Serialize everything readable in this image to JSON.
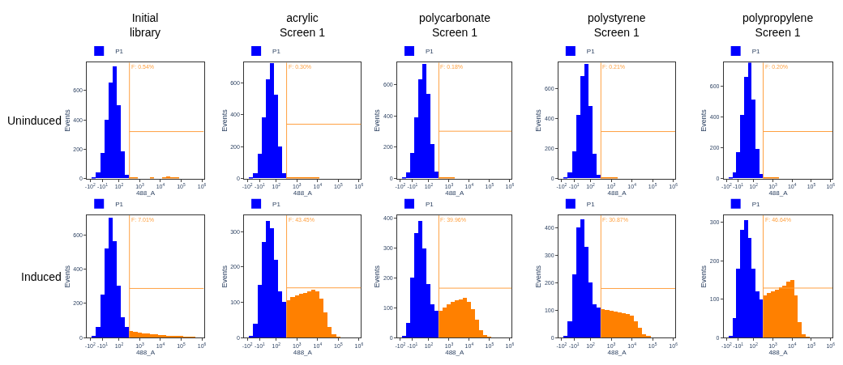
{
  "chart_data": [
    {
      "type": "bar",
      "title": "Initial\nlibrary",
      "xlabel": "488_A",
      "ylabel": "Events",
      "annotations": [
        "Uninduced",
        "F: 0.54%"
      ],
      "legend": "top left",
      "categories": [
        "-10$^{2}$",
        null,
        null,
        "-10$^{1}$",
        null,
        null,
        null,
        "10$^{2}$",
        null,
        null,
        null,
        null,
        "10$^{3}$",
        null,
        null,
        null,
        null,
        "10$^{4}$",
        null,
        null,
        null,
        null,
        "10$^{5}$",
        null,
        null,
        null,
        null,
        "10$^{6}$"
      ],
      "series": [
        {
          "name": "P1",
          "values": [
            0,
            5,
            40,
            170,
            400,
            650,
            760,
            500,
            180,
            25,
            6,
            2,
            0,
            0,
            0,
            2,
            0,
            0,
            4,
            9,
            5,
            2,
            0,
            0,
            0,
            0,
            0,
            0
          ]
        }
      ],
      "colors": [
        "#0000ff",
        "#0000ff",
        "#0000ff",
        "#0000ff",
        "#0000ff",
        "#0000ff",
        "#0000ff",
        "#0000ff",
        "#0000ff",
        "#0000ff",
        "#ff8000",
        "#ff8000",
        "#ff8000",
        "#ff8000",
        "#ff8000",
        "#ff8000",
        "#ff8000",
        "#ff8000",
        "#ff8000",
        "#ff8000",
        "#ff8000",
        "#ff8000",
        "#ff8000",
        "#ff8000",
        "#ff8000",
        "#ff8000",
        "#ff8000",
        "#ff8000"
      ],
      "ylim": [
        0,
        790
      ],
      "yticks": [
        0,
        200,
        400,
        600
      ],
      "ref_lines": [
        {
          "axis": "y",
          "value": 320,
          "color": "#ffa040"
        }
      ]
    },
    {
      "type": "bar",
      "title": "acrylic\nScreen 1",
      "xlabel": "488_A",
      "ylabel": "Events",
      "annotations": [
        "F: 0.30%"
      ],
      "legend": "top left",
      "categories": [
        "-10$^{2}$",
        null,
        null,
        "-10$^{1}$",
        null,
        null,
        null,
        "10$^{2}$",
        null,
        null,
        null,
        null,
        "10$^{3}$",
        null,
        null,
        null,
        null,
        "10$^{4}$",
        null,
        null,
        null,
        null,
        "10$^{5}$",
        null,
        null,
        null,
        null,
        "10$^{6}$"
      ],
      "series": [
        {
          "name": "P1",
          "values": [
            0,
            5,
            30,
            150,
            380,
            620,
            720,
            520,
            200,
            30,
            2,
            1,
            2,
            1,
            2,
            1,
            2,
            1,
            0,
            0,
            0,
            0,
            0,
            0,
            0,
            0,
            0,
            0
          ]
        }
      ],
      "colors": [
        "#0000ff",
        "#0000ff",
        "#0000ff",
        "#0000ff",
        "#0000ff",
        "#0000ff",
        "#0000ff",
        "#0000ff",
        "#0000ff",
        "#0000ff",
        "#ff8000",
        "#ff8000",
        "#ff8000",
        "#ff8000",
        "#ff8000",
        "#ff8000",
        "#ff8000",
        "#ff8000",
        "#ff8000",
        "#ff8000",
        "#ff8000",
        "#ff8000",
        "#ff8000",
        "#ff8000",
        "#ff8000",
        "#ff8000",
        "#ff8000",
        "#ff8000"
      ],
      "ylim": [
        0,
        725
      ],
      "yticks": [
        0,
        200,
        400,
        600
      ],
      "ref_lines": [
        {
          "axis": "y",
          "value": 340,
          "color": "#ffa040"
        }
      ]
    },
    {
      "type": "bar",
      "title": "polycarbonate\nScreen 1",
      "xlabel": "488_A",
      "ylabel": "Events",
      "annotations": [
        "F: 0.18%"
      ],
      "legend": "top left",
      "categories": [
        "-10$^{2}$",
        null,
        null,
        "-10$^{1}$",
        null,
        null,
        null,
        "10$^{2}$",
        null,
        null,
        null,
        null,
        "10$^{3}$",
        null,
        null,
        null,
        null,
        "10$^{4}$",
        null,
        null,
        null,
        null,
        "10$^{5}$",
        null,
        null,
        null,
        null,
        "10$^{6}$"
      ],
      "series": [
        {
          "name": "P1",
          "values": [
            0,
            5,
            35,
            160,
            390,
            630,
            730,
            540,
            220,
            40,
            2,
            1,
            2,
            1,
            0,
            0,
            0,
            0,
            0,
            0,
            0,
            0,
            0,
            0,
            0,
            0,
            0,
            0
          ]
        }
      ],
      "colors": [
        "#0000ff",
        "#0000ff",
        "#0000ff",
        "#0000ff",
        "#0000ff",
        "#0000ff",
        "#0000ff",
        "#0000ff",
        "#0000ff",
        "#0000ff",
        "#ff8000",
        "#ff8000",
        "#ff8000",
        "#ff8000",
        "#ff8000",
        "#ff8000",
        "#ff8000",
        "#ff8000",
        "#ff8000",
        "#ff8000",
        "#ff8000",
        "#ff8000",
        "#ff8000",
        "#ff8000",
        "#ff8000",
        "#ff8000",
        "#ff8000",
        "#ff8000"
      ],
      "ylim": [
        0,
        740
      ],
      "yticks": [
        0,
        200,
        400,
        600
      ],
      "ref_lines": [
        {
          "axis": "y",
          "value": 302,
          "color": "#ffa040"
        }
      ]
    },
    {
      "type": "bar",
      "title": "polystyrene\nScreen 1",
      "xlabel": "488_A",
      "ylabel": "Events",
      "annotations": [
        "F: 0.21%"
      ],
      "legend": "top left",
      "categories": [
        "-10$^{2}$",
        null,
        null,
        "-10$^{1}$",
        null,
        null,
        null,
        "10$^{2}$",
        null,
        null,
        null,
        null,
        "10$^{3}$",
        null,
        null,
        null,
        null,
        "10$^{4}$",
        null,
        null,
        null,
        null,
        "10$^{5}$",
        null,
        null,
        null,
        null,
        "10$^{6}$"
      ],
      "series": [
        {
          "name": "P1",
          "values": [
            0,
            5,
            40,
            180,
            420,
            680,
            760,
            480,
            160,
            20,
            2,
            1,
            2,
            1,
            0,
            0,
            0,
            0,
            0,
            0,
            0,
            0,
            0,
            0,
            0,
            0,
            0,
            0
          ]
        }
      ],
      "colors": [
        "#0000ff",
        "#0000ff",
        "#0000ff",
        "#0000ff",
        "#0000ff",
        "#0000ff",
        "#0000ff",
        "#0000ff",
        "#0000ff",
        "#0000ff",
        "#ff8000",
        "#ff8000",
        "#ff8000",
        "#ff8000",
        "#ff8000",
        "#ff8000",
        "#ff8000",
        "#ff8000",
        "#ff8000",
        "#ff8000",
        "#ff8000",
        "#ff8000",
        "#ff8000",
        "#ff8000",
        "#ff8000",
        "#ff8000",
        "#ff8000",
        "#ff8000"
      ],
      "ylim": [
        0,
        770
      ],
      "yticks": [
        0,
        200,
        400,
        600
      ],
      "ref_lines": [
        {
          "axis": "y",
          "value": 312,
          "color": "#ffa040"
        }
      ]
    },
    {
      "type": "bar",
      "title": "polypropylene\nScreen 1",
      "xlabel": "488_A",
      "ylabel": "Events",
      "annotations": [
        "F: 0.20%"
      ],
      "legend": "top left",
      "categories": [
        "-10$^{2}$",
        null,
        null,
        "-10$^{1}$",
        null,
        null,
        null,
        "10$^{2}$",
        null,
        null,
        null,
        null,
        "10$^{3}$",
        null,
        null,
        null,
        null,
        "10$^{4}$",
        null,
        null,
        null,
        null,
        "10$^{5}$",
        null,
        null,
        null,
        null,
        "10$^{6}$"
      ],
      "series": [
        {
          "name": "P1",
          "values": [
            0,
            5,
            35,
            170,
            410,
            660,
            750,
            510,
            190,
            25,
            2,
            1,
            2,
            1,
            0,
            0,
            0,
            0,
            0,
            0,
            0,
            0,
            0,
            0,
            0,
            0,
            0,
            0
          ]
        }
      ],
      "colors": [
        "#0000ff",
        "#0000ff",
        "#0000ff",
        "#0000ff",
        "#0000ff",
        "#0000ff",
        "#0000ff",
        "#0000ff",
        "#0000ff",
        "#0000ff",
        "#ff8000",
        "#ff8000",
        "#ff8000",
        "#ff8000",
        "#ff8000",
        "#ff8000",
        "#ff8000",
        "#ff8000",
        "#ff8000",
        "#ff8000",
        "#ff8000",
        "#ff8000",
        "#ff8000",
        "#ff8000",
        "#ff8000",
        "#ff8000",
        "#ff8000",
        "#ff8000"
      ],
      "ylim": [
        0,
        752
      ],
      "yticks": [
        0,
        200,
        400,
        600
      ],
      "ref_lines": [
        {
          "axis": "y",
          "value": 305,
          "color": "#ffa040"
        }
      ]
    },
    {
      "type": "bar",
      "xlabel": "488_A",
      "ylabel": "Events",
      "annotations": [
        "Induced",
        "F: 7.01%"
      ],
      "legend": "top left",
      "categories": [
        "-10$^{2}$",
        null,
        null,
        "-10$^{1}$",
        null,
        null,
        null,
        "10$^{2}$",
        null,
        null,
        null,
        null,
        "10$^{3}$",
        null,
        null,
        null,
        null,
        "10$^{4}$",
        null,
        null,
        null,
        null,
        "10$^{5}$",
        null,
        null,
        null,
        null,
        "10$^{6}$"
      ],
      "series": [
        {
          "name": "P1",
          "values": [
            0,
            5,
            60,
            250,
            520,
            700,
            560,
            300,
            120,
            60,
            40,
            35,
            30,
            25,
            22,
            20,
            18,
            15,
            12,
            10,
            8,
            6,
            5,
            4,
            2,
            1,
            0,
            0
          ]
        }
      ],
      "colors": [
        "#0000ff",
        "#0000ff",
        "#0000ff",
        "#0000ff",
        "#0000ff",
        "#0000ff",
        "#0000ff",
        "#0000ff",
        "#0000ff",
        "#0000ff",
        "#ff8000",
        "#ff8000",
        "#ff8000",
        "#ff8000",
        "#ff8000",
        "#ff8000",
        "#ff8000",
        "#ff8000",
        "#ff8000",
        "#ff8000",
        "#ff8000",
        "#ff8000",
        "#ff8000",
        "#ff8000",
        "#ff8000",
        "#ff8000",
        "#ff8000",
        "#ff8000"
      ],
      "ylim": [
        0,
        713
      ],
      "yticks": [
        0,
        200,
        400,
        600
      ],
      "ref_lines": [
        {
          "axis": "y",
          "value": 287,
          "color": "#ffa040"
        }
      ]
    },
    {
      "type": "bar",
      "xlabel": "488_A",
      "ylabel": "Events",
      "annotations": [
        "F: 43.45%"
      ],
      "legend": "top left",
      "categories": [
        "-10$^{2}$",
        null,
        null,
        "-10$^{1}$",
        null,
        null,
        null,
        "10$^{2}$",
        null,
        null,
        null,
        null,
        "10$^{3}$",
        null,
        null,
        null,
        null,
        "10$^{4}$",
        null,
        null,
        null,
        null,
        "10$^{5}$",
        null,
        null,
        null,
        null,
        "10$^{6}$"
      ],
      "series": [
        {
          "name": "P1",
          "values": [
            0,
            5,
            40,
            150,
            270,
            330,
            310,
            220,
            130,
            100,
            105,
            115,
            120,
            123,
            127,
            130,
            135,
            130,
            110,
            70,
            30,
            10,
            2,
            0,
            0,
            0,
            0,
            0
          ]
        }
      ],
      "colors": [
        "#0000ff",
        "#0000ff",
        "#0000ff",
        "#0000ff",
        "#0000ff",
        "#0000ff",
        "#0000ff",
        "#0000ff",
        "#0000ff",
        "#0000ff",
        "#ff8000",
        "#ff8000",
        "#ff8000",
        "#ff8000",
        "#ff8000",
        "#ff8000",
        "#ff8000",
        "#ff8000",
        "#ff8000",
        "#ff8000",
        "#ff8000",
        "#ff8000",
        "#ff8000",
        "#ff8000",
        "#ff8000",
        "#ff8000",
        "#ff8000",
        "#ff8000"
      ],
      "ylim": [
        0,
        346
      ],
      "yticks": [
        0,
        100,
        200,
        300
      ],
      "ref_lines": [
        {
          "axis": "y",
          "value": 141,
          "color": "#ffa040"
        }
      ]
    },
    {
      "type": "bar",
      "xlabel": "488_A",
      "ylabel": "Events",
      "annotations": [
        "F: 39.96%"
      ],
      "legend": "top left",
      "categories": [
        "-10$^{2}$",
        null,
        null,
        "-10$^{1}$",
        null,
        null,
        null,
        "10$^{2}$",
        null,
        null,
        null,
        null,
        "10$^{3}$",
        null,
        null,
        null,
        null,
        "10$^{4}$",
        null,
        null,
        null,
        null,
        "10$^{5}$",
        null,
        null,
        null,
        null,
        "10$^{6}$"
      ],
      "series": [
        {
          "name": "P1",
          "values": [
            0,
            5,
            50,
            200,
            350,
            390,
            300,
            180,
            110,
            90,
            90,
            100,
            110,
            120,
            125,
            128,
            132,
            120,
            95,
            60,
            25,
            8,
            2,
            0,
            0,
            0,
            0,
            0
          ]
        }
      ],
      "colors": [
        "#0000ff",
        "#0000ff",
        "#0000ff",
        "#0000ff",
        "#0000ff",
        "#0000ff",
        "#0000ff",
        "#0000ff",
        "#0000ff",
        "#0000ff",
        "#ff8000",
        "#ff8000",
        "#ff8000",
        "#ff8000",
        "#ff8000",
        "#ff8000",
        "#ff8000",
        "#ff8000",
        "#ff8000",
        "#ff8000",
        "#ff8000",
        "#ff8000",
        "#ff8000",
        "#ff8000",
        "#ff8000",
        "#ff8000",
        "#ff8000",
        "#ff8000"
      ],
      "ylim": [
        0,
        410
      ],
      "yticks": [
        0,
        100,
        200,
        300,
        400
      ],
      "ref_lines": [
        {
          "axis": "y",
          "value": 166,
          "color": "#ffa040"
        }
      ]
    },
    {
      "type": "bar",
      "xlabel": "488_A",
      "ylabel": "Events",
      "annotations": [
        "F: 30.87%"
      ],
      "legend": "top left",
      "categories": [
        "-10$^{2}$",
        null,
        null,
        "-10$^{1}$",
        null,
        null,
        null,
        "10$^{2}$",
        null,
        null,
        null,
        null,
        "10$^{3}$",
        null,
        null,
        null,
        null,
        "10$^{4}$",
        null,
        null,
        null,
        null,
        "10$^{5}$",
        null,
        null,
        null,
        null,
        "10$^{6}$"
      ],
      "series": [
        {
          "name": "P1",
          "values": [
            0,
            5,
            60,
            230,
            400,
            430,
            330,
            200,
            120,
            110,
            102,
            99,
            97,
            94,
            92,
            89,
            85,
            80,
            60,
            35,
            12,
            3,
            0,
            0,
            0,
            0,
            0,
            0
          ]
        }
      ],
      "colors": [
        "#0000ff",
        "#0000ff",
        "#0000ff",
        "#0000ff",
        "#0000ff",
        "#0000ff",
        "#0000ff",
        "#0000ff",
        "#0000ff",
        "#0000ff",
        "#ff8000",
        "#ff8000",
        "#ff8000",
        "#ff8000",
        "#ff8000",
        "#ff8000",
        "#ff8000",
        "#ff8000",
        "#ff8000",
        "#ff8000",
        "#ff8000",
        "#ff8000",
        "#ff8000",
        "#ff8000",
        "#ff8000",
        "#ff8000",
        "#ff8000",
        "#ff8000"
      ],
      "ylim": [
        0,
        445
      ],
      "yticks": [
        0,
        100,
        200,
        300,
        400
      ],
      "ref_lines": [
        {
          "axis": "y",
          "value": 179,
          "color": "#ffa040"
        }
      ]
    },
    {
      "type": "bar",
      "xlabel": "488_A",
      "ylabel": "Events",
      "annotations": [
        "F: 46.64%"
      ],
      "legend": "top left",
      "categories": [
        "-10$^{2}$",
        null,
        null,
        "-10$^{1}$",
        null,
        null,
        null,
        "10$^{2}$",
        null,
        null,
        null,
        null,
        "10$^{3}$",
        null,
        null,
        null,
        null,
        "10$^{4}$",
        null,
        null,
        null,
        null,
        "10$^{5}$",
        null,
        null,
        null,
        null,
        "10$^{6}$"
      ],
      "series": [
        {
          "name": "P1",
          "values": [
            0,
            5,
            50,
            180,
            280,
            305,
            260,
            180,
            120,
            100,
            110,
            115,
            120,
            125,
            130,
            135,
            145,
            150,
            110,
            40,
            8,
            1,
            0,
            0,
            0,
            0,
            0,
            0
          ]
        }
      ],
      "colors": [
        "#0000ff",
        "#0000ff",
        "#0000ff",
        "#0000ff",
        "#0000ff",
        "#0000ff",
        "#0000ff",
        "#0000ff",
        "#0000ff",
        "#0000ff",
        "#ff8000",
        "#ff8000",
        "#ff8000",
        "#ff8000",
        "#ff8000",
        "#ff8000",
        "#ff8000",
        "#ff8000",
        "#ff8000",
        "#ff8000",
        "#ff8000",
        "#ff8000",
        "#ff8000",
        "#ff8000",
        "#ff8000",
        "#ff8000",
        "#ff8000",
        "#ff8000"
      ],
      "ylim": [
        0,
        318
      ],
      "yticks": [
        0,
        100,
        200,
        300
      ],
      "ref_lines": [
        {
          "axis": "y",
          "value": 129,
          "color": "#ffa040"
        }
      ]
    }
  ]
}
